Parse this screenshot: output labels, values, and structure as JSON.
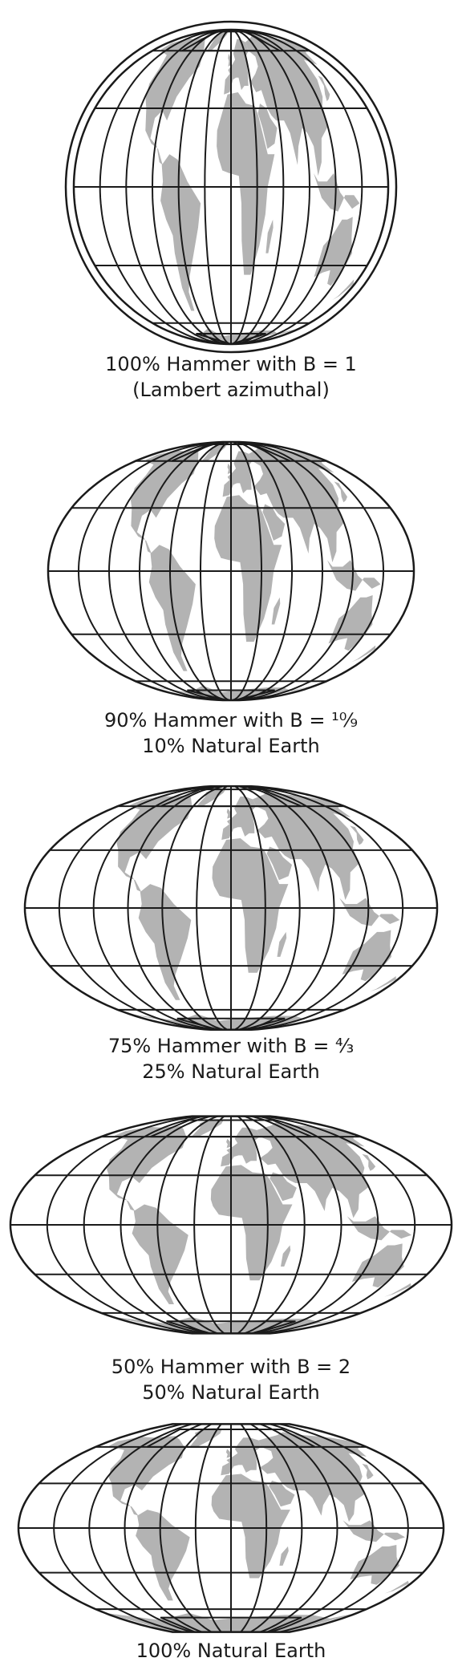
{
  "panels": [
    {
      "id": "hammer-100",
      "caption": [
        "100% Hammer with B = 1",
        "(Lambert azimuthal)"
      ],
      "hammer_percent": 100,
      "natural_earth_percent": 0,
      "B": 1
    },
    {
      "id": "hammer-90",
      "caption": [
        "90% Hammer with B = ¹⁰⁄₉",
        "10% Natural Earth"
      ],
      "hammer_percent": 90,
      "natural_earth_percent": 10,
      "B": 1.111
    },
    {
      "id": "hammer-75",
      "caption": [
        "75% Hammer with B = ⁴⁄₃",
        "25% Natural Earth"
      ],
      "hammer_percent": 75,
      "natural_earth_percent": 25,
      "B": 1.333
    },
    {
      "id": "hammer-50",
      "caption": [
        "50% Hammer with B = 2",
        "50% Natural Earth"
      ],
      "hammer_percent": 50,
      "natural_earth_percent": 50,
      "B": 2
    },
    {
      "id": "natural-earth-100",
      "caption": [
        "100% Natural Earth"
      ],
      "hammer_percent": 0,
      "natural_earth_percent": 100,
      "B": null
    }
  ],
  "colors": {
    "land": "#b3b3b3",
    "graticule": "#1a1a1a",
    "background": "#ffffff"
  }
}
